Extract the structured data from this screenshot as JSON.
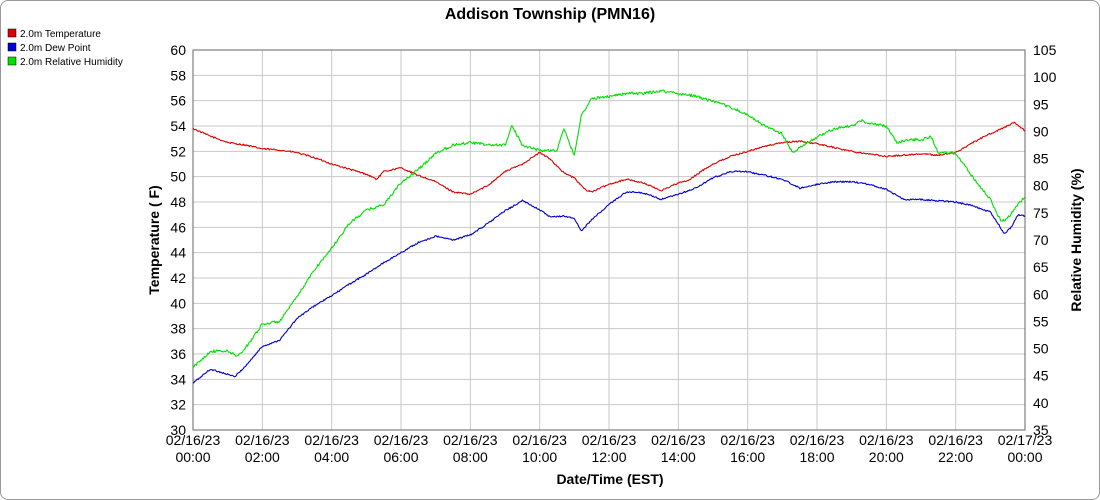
{
  "chart_data": {
    "type": "line",
    "title": "Addison Township (PMN16)",
    "xlabel": "Date/Time (EST)",
    "ylabel": "Temperature ( F)",
    "y2label": "Relative Humidity (%)",
    "ylim": [
      30,
      60
    ],
    "y2lim": [
      35,
      105
    ],
    "yticks": [
      30,
      32,
      34,
      36,
      38,
      40,
      42,
      44,
      46,
      48,
      50,
      52,
      54,
      56,
      58,
      60
    ],
    "y2ticks": [
      35,
      40,
      45,
      50,
      55,
      60,
      65,
      70,
      75,
      80,
      85,
      90,
      95,
      100,
      105
    ],
    "xlim": [
      0,
      24
    ],
    "xticks": [
      {
        "x": 0,
        "date": "02/16/23",
        "time": "00:00"
      },
      {
        "x": 2,
        "date": "02/16/23",
        "time": "02:00"
      },
      {
        "x": 4,
        "date": "02/16/23",
        "time": "04:00"
      },
      {
        "x": 6,
        "date": "02/16/23",
        "time": "06:00"
      },
      {
        "x": 8,
        "date": "02/16/23",
        "time": "08:00"
      },
      {
        "x": 10,
        "date": "02/16/23",
        "time": "10:00"
      },
      {
        "x": 12,
        "date": "02/16/23",
        "time": "12:00"
      },
      {
        "x": 14,
        "date": "02/16/23",
        "time": "14:00"
      },
      {
        "x": 16,
        "date": "02/16/23",
        "time": "16:00"
      },
      {
        "x": 18,
        "date": "02/16/23",
        "time": "18:00"
      },
      {
        "x": 20,
        "date": "02/16/23",
        "time": "20:00"
      },
      {
        "x": 22,
        "date": "02/16/23",
        "time": "22:00"
      },
      {
        "x": 24,
        "date": "02/17/23",
        "time": "00:00"
      }
    ],
    "grid": true,
    "legend_position": "top-left",
    "series": [
      {
        "name": "2.0m Temperature",
        "color": "#e00000",
        "axis": "left",
        "points": [
          [
            0,
            53.8
          ],
          [
            0.5,
            53.2
          ],
          [
            1,
            52.7
          ],
          [
            1.5,
            52.5
          ],
          [
            2,
            52.2
          ],
          [
            2.5,
            52.1
          ],
          [
            3,
            51.9
          ],
          [
            3.5,
            51.5
          ],
          [
            4,
            51.0
          ],
          [
            4.5,
            50.6
          ],
          [
            5,
            50.2
          ],
          [
            5.3,
            49.8
          ],
          [
            5.5,
            50.4
          ],
          [
            6,
            50.7
          ],
          [
            6.5,
            50.1
          ],
          [
            7,
            49.6
          ],
          [
            7.5,
            48.8
          ],
          [
            8,
            48.6
          ],
          [
            8.5,
            49.3
          ],
          [
            9,
            50.4
          ],
          [
            9.5,
            51.0
          ],
          [
            10,
            51.9
          ],
          [
            10.3,
            51.4
          ],
          [
            10.7,
            50.3
          ],
          [
            11,
            49.9
          ],
          [
            11.3,
            49.0
          ],
          [
            11.5,
            48.8
          ],
          [
            12,
            49.4
          ],
          [
            12.5,
            49.8
          ],
          [
            13,
            49.5
          ],
          [
            13.5,
            48.9
          ],
          [
            14,
            49.5
          ],
          [
            14.3,
            49.7
          ],
          [
            14.7,
            50.5
          ],
          [
            15,
            51.0
          ],
          [
            15.5,
            51.6
          ],
          [
            16,
            52.0
          ],
          [
            16.5,
            52.4
          ],
          [
            17,
            52.7
          ],
          [
            17.5,
            52.8
          ],
          [
            18,
            52.6
          ],
          [
            18.5,
            52.3
          ],
          [
            19,
            52.0
          ],
          [
            19.5,
            51.8
          ],
          [
            20,
            51.6
          ],
          [
            20.5,
            51.7
          ],
          [
            21,
            51.8
          ],
          [
            21.5,
            51.7
          ],
          [
            22,
            51.9
          ],
          [
            22.5,
            52.7
          ],
          [
            23,
            53.4
          ],
          [
            23.5,
            54.0
          ],
          [
            23.7,
            54.3
          ],
          [
            24,
            53.6
          ]
        ]
      },
      {
        "name": "2.0m Dew Point",
        "color": "#0000d0",
        "axis": "left",
        "points": [
          [
            0,
            33.7
          ],
          [
            0.5,
            34.8
          ],
          [
            1,
            34.4
          ],
          [
            1.2,
            34.2
          ],
          [
            1.5,
            35.0
          ],
          [
            2,
            36.6
          ],
          [
            2.5,
            37.1
          ],
          [
            3,
            38.8
          ],
          [
            3.5,
            39.8
          ],
          [
            4,
            40.6
          ],
          [
            4.5,
            41.5
          ],
          [
            5,
            42.3
          ],
          [
            5.5,
            43.2
          ],
          [
            6,
            44.0
          ],
          [
            6.5,
            44.8
          ],
          [
            7,
            45.3
          ],
          [
            7.5,
            45.0
          ],
          [
            8,
            45.4
          ],
          [
            8.5,
            46.3
          ],
          [
            9,
            47.3
          ],
          [
            9.5,
            48.1
          ],
          [
            10,
            47.4
          ],
          [
            10.3,
            46.8
          ],
          [
            10.7,
            46.9
          ],
          [
            11,
            46.7
          ],
          [
            11.2,
            45.7
          ],
          [
            11.5,
            46.6
          ],
          [
            12,
            47.8
          ],
          [
            12.5,
            48.8
          ],
          [
            13,
            48.7
          ],
          [
            13.5,
            48.2
          ],
          [
            14,
            48.6
          ],
          [
            14.5,
            49.1
          ],
          [
            15,
            49.9
          ],
          [
            15.5,
            50.4
          ],
          [
            16,
            50.4
          ],
          [
            16.5,
            50.1
          ],
          [
            17,
            49.8
          ],
          [
            17.5,
            49.1
          ],
          [
            18,
            49.4
          ],
          [
            18.5,
            49.6
          ],
          [
            19,
            49.6
          ],
          [
            19.5,
            49.4
          ],
          [
            20,
            49.0
          ],
          [
            20.5,
            48.2
          ],
          [
            21,
            48.2
          ],
          [
            21.5,
            48.1
          ],
          [
            22,
            48.0
          ],
          [
            22.5,
            47.7
          ],
          [
            23,
            47.2
          ],
          [
            23.2,
            46.4
          ],
          [
            23.4,
            45.5
          ],
          [
            23.6,
            46.0
          ],
          [
            23.8,
            47.0
          ],
          [
            24,
            46.9
          ]
        ]
      },
      {
        "name": "2.0m Relative Humidity",
        "color": "#00e000",
        "axis": "right",
        "points": [
          [
            0,
            46.5
          ],
          [
            0.5,
            49.5
          ],
          [
            1,
            49.5
          ],
          [
            1.3,
            48.6
          ],
          [
            1.5,
            50.0
          ],
          [
            2,
            54.5
          ],
          [
            2.5,
            55.0
          ],
          [
            3,
            59.5
          ],
          [
            3.5,
            64.5
          ],
          [
            4,
            68.5
          ],
          [
            4.5,
            73.0
          ],
          [
            5,
            75.5
          ],
          [
            5.5,
            76.5
          ],
          [
            6,
            80.5
          ],
          [
            6.5,
            83.0
          ],
          [
            7,
            86.0
          ],
          [
            7.5,
            87.5
          ],
          [
            8,
            88.0
          ],
          [
            8.5,
            87.5
          ],
          [
            9,
            87.5
          ],
          [
            9.2,
            91.0
          ],
          [
            9.5,
            87.5
          ],
          [
            10,
            86.5
          ],
          [
            10.5,
            86.5
          ],
          [
            10.7,
            90.5
          ],
          [
            11,
            85.5
          ],
          [
            11.2,
            93.0
          ],
          [
            11.5,
            96.0
          ],
          [
            12,
            96.5
          ],
          [
            12.5,
            97.0
          ],
          [
            13,
            97.0
          ],
          [
            13.5,
            97.5
          ],
          [
            14,
            97.0
          ],
          [
            14.5,
            96.5
          ],
          [
            15,
            95.5
          ],
          [
            15.5,
            94.5
          ],
          [
            16,
            93.0
          ],
          [
            16.5,
            91.0
          ],
          [
            17,
            89.5
          ],
          [
            17.3,
            86.0
          ],
          [
            17.5,
            87.0
          ],
          [
            18,
            89.0
          ],
          [
            18.5,
            90.5
          ],
          [
            19,
            91.0
          ],
          [
            19.3,
            92.0
          ],
          [
            19.5,
            91.5
          ],
          [
            20,
            91.0
          ],
          [
            20.3,
            88.0
          ],
          [
            20.7,
            88.5
          ],
          [
            21,
            88.5
          ],
          [
            21.3,
            89.0
          ],
          [
            21.5,
            86.0
          ],
          [
            22,
            86.0
          ],
          [
            22.5,
            81.5
          ],
          [
            23,
            77.5
          ],
          [
            23.3,
            73.5
          ],
          [
            23.5,
            74.0
          ],
          [
            23.8,
            76.5
          ],
          [
            24,
            78.0
          ]
        ]
      }
    ]
  }
}
